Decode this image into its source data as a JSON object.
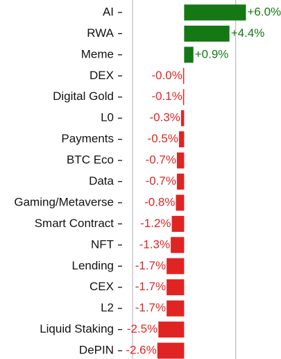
{
  "chart_data": {
    "type": "barh",
    "categories": [
      "AI",
      "RWA",
      "Meme",
      "DEX",
      "Digital Gold",
      "L0",
      "Payments",
      "BTC Eco",
      "Data",
      "Gaming/Metaverse",
      "Smart Contract",
      "NFT",
      "Lending",
      "CEX",
      "L2",
      "Liquid Staking",
      "DePIN"
    ],
    "values": [
      6.0,
      4.4,
      0.9,
      0,
      -0.1,
      -0.3,
      -0.5,
      -0.7,
      -0.7,
      -0.8,
      -1.2,
      -1.3,
      -1.7,
      -1.7,
      -1.7,
      -2.5,
      -2.6
    ],
    "value_labels": [
      "+6.0%",
      "+4.4%",
      "+0.9%",
      "-0.0%",
      "-0.1%",
      "-0.3%",
      "-0.5%",
      "-0.7%",
      "-0.7%",
      "-0.8%",
      "-1.2%",
      "-1.3%",
      "-1.7%",
      "-1.7%",
      "-1.7%",
      "-2.5%",
      "-2.6%"
    ],
    "colors": [
      "#147814",
      "#147814",
      "#147814",
      "#e02424",
      "#e02424",
      "#e02424",
      "#e02424",
      "#e02424",
      "#e02424",
      "#e02424",
      "#e02424",
      "#e02424",
      "#e02424",
      "#e02424",
      "#e02424",
      "#e02424",
      "#e02424"
    ],
    "xlim": [
      -5.75,
      9.2
    ],
    "gridlines": [
      -5,
      5
    ]
  }
}
